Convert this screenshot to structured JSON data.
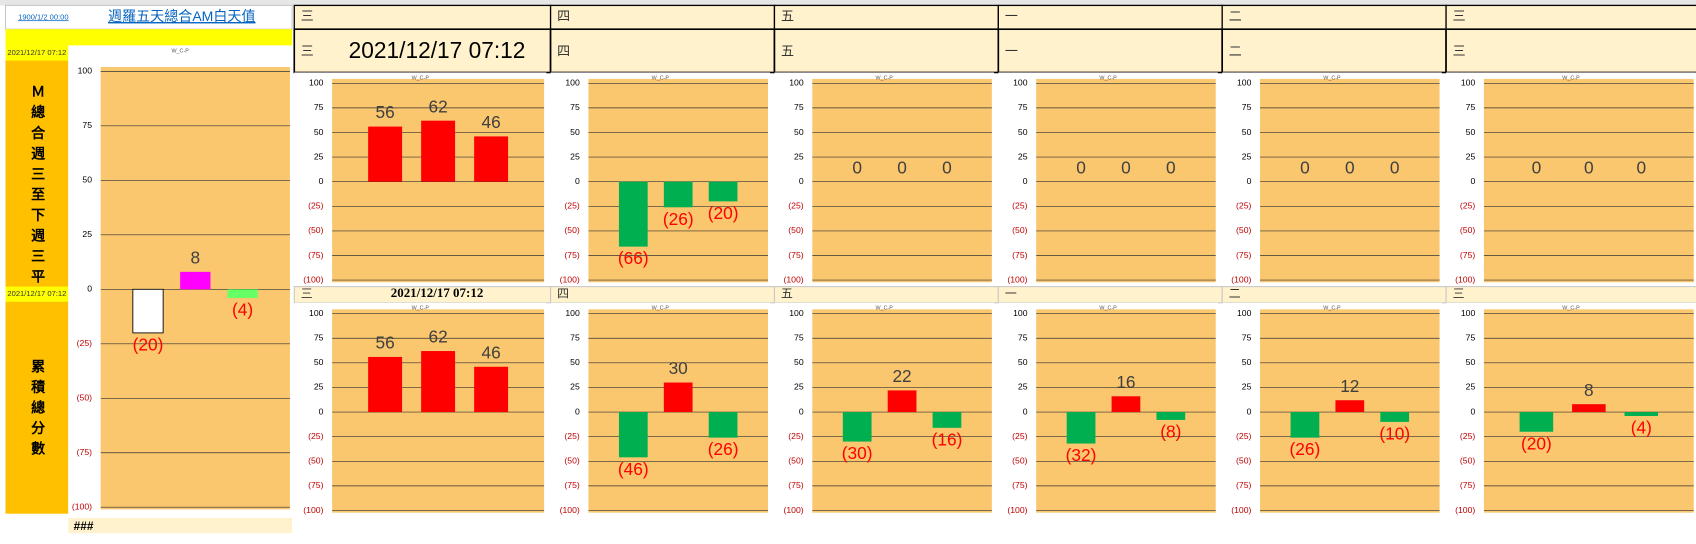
{
  "sheet": {
    "corner_date": "1900/1/2 00:00",
    "title": "週羅五天總合AM白天值",
    "left_labels": [
      "2021/12/17 07:12",
      "Ｍ總合週三至下週三平",
      "2021/12/17 07:12",
      "累積總分數"
    ],
    "footer": "###",
    "header_row": [
      "三",
      "四",
      "五",
      "一",
      "二",
      "三"
    ],
    "second_row": [
      "三",
      "2021/12/17 07:12",
      "四",
      "五",
      "一",
      "二",
      "三"
    ],
    "middle_row": [
      "三",
      "2021/12/17 07:12",
      "四",
      "五",
      "一",
      "二",
      "三"
    ]
  },
  "chart_data": [
    {
      "type": "bar",
      "title": "W_C-P",
      "categories": [
        null,
        null,
        null
      ],
      "values": [
        -20,
        8,
        -4
      ],
      "value_labels": [
        "(20)",
        "8",
        "(4)"
      ],
      "colors": [
        "#ffffff",
        "#ff00ff",
        "#66ff66"
      ],
      "ylim": [
        -100,
        100
      ],
      "yticks": [
        100,
        75,
        50,
        25,
        0,
        {
          "value": -25,
          "label": "(25)"
        },
        {
          "value": -50,
          "label": "(50)"
        },
        {
          "value": -75,
          "label": "(75)"
        },
        {
          "value": -100,
          "label": "(100)"
        }
      ],
      "grid": true
    },
    {
      "type": "bar",
      "title": "W_C-P",
      "categories": [
        null,
        null,
        null
      ],
      "values": [
        56,
        62,
        46
      ],
      "value_labels": [
        "56",
        "62",
        "46"
      ],
      "colors": [
        "#ff0000",
        "#ff0000",
        "#ff0000"
      ],
      "ylim": [
        -100,
        100
      ],
      "yticks": [
        100,
        75,
        50,
        25,
        0,
        {
          "value": -25,
          "label": "(25)"
        },
        {
          "value": -50,
          "label": "(50)"
        },
        {
          "value": -75,
          "label": "(75)"
        },
        {
          "value": -100,
          "label": "(100)"
        }
      ],
      "grid": true
    },
    {
      "type": "bar",
      "title": "W_C-P",
      "categories": [
        null,
        null,
        null
      ],
      "values": [
        -66,
        -26,
        -20
      ],
      "value_labels": [
        "(66)",
        "(26)",
        "(20)"
      ],
      "colors": [
        "#00b050",
        "#00b050",
        "#00b050"
      ],
      "ylim": [
        -100,
        100
      ],
      "yticks": [
        100,
        75,
        50,
        25,
        0,
        {
          "value": -25,
          "label": "(25)"
        },
        {
          "value": -50,
          "label": "(50)"
        },
        {
          "value": -75,
          "label": "(75)"
        },
        {
          "value": -100,
          "label": "(100)"
        }
      ],
      "grid": true
    },
    {
      "type": "bar",
      "title": "W_C-P",
      "categories": [
        null,
        null,
        null
      ],
      "values": [
        0,
        0,
        0
      ],
      "value_labels": [
        "0",
        "0",
        "0"
      ],
      "colors": [
        "#ff0000",
        "#ff0000",
        "#ff0000"
      ],
      "ylim": [
        -100,
        100
      ],
      "yticks": [
        100,
        75,
        50,
        25,
        0,
        {
          "value": -25,
          "label": "(25)"
        },
        {
          "value": -50,
          "label": "(50)"
        },
        {
          "value": -75,
          "label": "(75)"
        },
        {
          "value": -100,
          "label": "(100)"
        }
      ],
      "grid": true
    },
    {
      "type": "bar",
      "title": "W_C-P",
      "categories": [
        null,
        null,
        null
      ],
      "values": [
        0,
        0,
        0
      ],
      "value_labels": [
        "0",
        "0",
        "0"
      ],
      "colors": [
        "#ff0000",
        "#ff0000",
        "#ff0000"
      ],
      "ylim": [
        -100,
        100
      ],
      "yticks": [
        100,
        75,
        50,
        25,
        0,
        {
          "value": -25,
          "label": "(25)"
        },
        {
          "value": -50,
          "label": "(50)"
        },
        {
          "value": -75,
          "label": "(75)"
        },
        {
          "value": -100,
          "label": "(100)"
        }
      ],
      "grid": true
    },
    {
      "type": "bar",
      "title": "W_C-P",
      "categories": [
        null,
        null,
        null
      ],
      "values": [
        0,
        0,
        0
      ],
      "value_labels": [
        "0",
        "0",
        "0"
      ],
      "colors": [
        "#ff0000",
        "#ff0000",
        "#ff0000"
      ],
      "ylim": [
        -100,
        100
      ],
      "yticks": [
        100,
        75,
        50,
        25,
        0,
        {
          "value": -25,
          "label": "(25)"
        },
        {
          "value": -50,
          "label": "(50)"
        },
        {
          "value": -75,
          "label": "(75)"
        },
        {
          "value": -100,
          "label": "(100)"
        }
      ],
      "grid": true
    },
    {
      "type": "bar",
      "title": "W_C-P",
      "categories": [
        null,
        null,
        null
      ],
      "values": [
        0,
        0,
        0
      ],
      "value_labels": [
        "0",
        "0",
        "0"
      ],
      "colors": [
        "#ff0000",
        "#ff0000",
        "#ff0000"
      ],
      "ylim": [
        -100,
        100
      ],
      "yticks": [
        100,
        75,
        50,
        25,
        0,
        {
          "value": -25,
          "label": "(25)"
        },
        {
          "value": -50,
          "label": "(50)"
        },
        {
          "value": -75,
          "label": "(75)"
        },
        {
          "value": -100,
          "label": "(100)"
        }
      ],
      "grid": true
    },
    {
      "type": "bar",
      "title": "W_C-P",
      "categories": [
        null,
        null,
        null
      ],
      "values": [
        56,
        62,
        46
      ],
      "value_labels": [
        "56",
        "62",
        "46"
      ],
      "colors": [
        "#ff0000",
        "#ff0000",
        "#ff0000"
      ],
      "ylim": [
        -100,
        100
      ],
      "yticks": [
        100,
        75,
        50,
        25,
        0,
        {
          "value": -25,
          "label": "(25)"
        },
        {
          "value": -50,
          "label": "(50)"
        },
        {
          "value": -75,
          "label": "(75)"
        },
        {
          "value": -100,
          "label": "(100)"
        }
      ],
      "grid": true
    },
    {
      "type": "bar",
      "title": "W_C-P",
      "categories": [
        null,
        null,
        null
      ],
      "values": [
        -46,
        30,
        -26
      ],
      "value_labels": [
        "(46)",
        "30",
        "(26)"
      ],
      "colors": [
        "#00b050",
        "#ff0000",
        "#00b050"
      ],
      "ylim": [
        -100,
        100
      ],
      "yticks": [
        100,
        75,
        50,
        25,
        0,
        {
          "value": -25,
          "label": "(25)"
        },
        {
          "value": -50,
          "label": "(50)"
        },
        {
          "value": -75,
          "label": "(75)"
        },
        {
          "value": -100,
          "label": "(100)"
        }
      ],
      "grid": true
    },
    {
      "type": "bar",
      "title": "W_C-P",
      "categories": [
        null,
        null,
        null
      ],
      "values": [
        -30,
        22,
        -16
      ],
      "value_labels": [
        "(30)",
        "22",
        "(16)"
      ],
      "colors": [
        "#00b050",
        "#ff0000",
        "#00b050"
      ],
      "ylim": [
        -100,
        100
      ],
      "yticks": [
        100,
        75,
        50,
        25,
        0,
        {
          "value": -25,
          "label": "(25)"
        },
        {
          "value": -50,
          "label": "(50)"
        },
        {
          "value": -75,
          "label": "(75)"
        },
        {
          "value": -100,
          "label": "(100)"
        }
      ],
      "grid": true
    },
    {
      "type": "bar",
      "title": "W_C-P",
      "categories": [
        null,
        null,
        null
      ],
      "values": [
        -32,
        16,
        -8
      ],
      "value_labels": [
        "(32)",
        "16",
        "(8)"
      ],
      "colors": [
        "#00b050",
        "#ff0000",
        "#00b050"
      ],
      "ylim": [
        -100,
        100
      ],
      "yticks": [
        100,
        75,
        50,
        25,
        0,
        {
          "value": -25,
          "label": "(25)"
        },
        {
          "value": -50,
          "label": "(50)"
        },
        {
          "value": -75,
          "label": "(75)"
        },
        {
          "value": -100,
          "label": "(100)"
        }
      ],
      "grid": true
    },
    {
      "type": "bar",
      "title": "W_C-P",
      "categories": [
        null,
        null,
        null
      ],
      "values": [
        -26,
        12,
        -10
      ],
      "value_labels": [
        "(26)",
        "12",
        "(10)"
      ],
      "colors": [
        "#00b050",
        "#ff0000",
        "#00b050"
      ],
      "ylim": [
        -100,
        100
      ],
      "yticks": [
        100,
        75,
        50,
        25,
        0,
        {
          "value": -25,
          "label": "(25)"
        },
        {
          "value": -50,
          "label": "(50)"
        },
        {
          "value": -75,
          "label": "(75)"
        },
        {
          "value": -100,
          "label": "(100)"
        }
      ],
      "grid": true
    },
    {
      "type": "bar",
      "title": "W_C-P",
      "categories": [
        null,
        null,
        null
      ],
      "values": [
        -20,
        8,
        -4
      ],
      "value_labels": [
        "(20)",
        "8",
        "(4)"
      ],
      "colors": [
        "#00b050",
        "#ff0000",
        "#00b050"
      ],
      "ylim": [
        -100,
        100
      ],
      "yticks": [
        100,
        75,
        50,
        25,
        0,
        {
          "value": -25,
          "label": "(25)"
        },
        {
          "value": -50,
          "label": "(50)"
        },
        {
          "value": -75,
          "label": "(75)"
        },
        {
          "value": -100,
          "label": "(100)"
        }
      ],
      "grid": true
    }
  ]
}
